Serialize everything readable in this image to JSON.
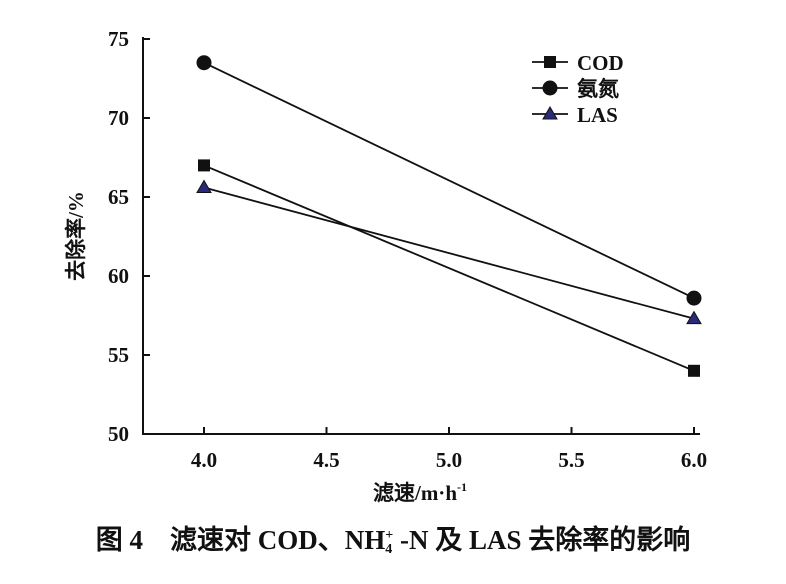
{
  "chart_data": {
    "type": "line",
    "xlabel": "滤速/m·h",
    "xlabel_sup": "-1",
    "ylabel": "去除率/%",
    "x": [
      4.0,
      6.0
    ],
    "xlim": [
      3.72,
      6.02
    ],
    "ylim": [
      50,
      75
    ],
    "xticks": [
      "4.0",
      "4.5",
      "5.0",
      "5.5",
      "6.0"
    ],
    "yticks": [
      "50",
      "55",
      "60",
      "65",
      "70",
      "75"
    ],
    "grid": false,
    "legend_placement": "top-right",
    "series": [
      {
        "name": "COD",
        "marker": "square",
        "color": "#111111",
        "values": [
          67.0,
          54.0
        ]
      },
      {
        "name": "氨氮",
        "marker": "circle",
        "color": "#111111",
        "values": [
          73.5,
          58.6
        ]
      },
      {
        "name": "LAS",
        "marker": "triangle",
        "color": "#2a2a7a",
        "values": [
          65.6,
          57.3
        ]
      }
    ]
  },
  "caption": {
    "fig": "图 4",
    "text1": "滤速对 COD、NH",
    "sub": "4",
    "sup": "+",
    "text2": " -N 及 LAS 去除率的影响"
  }
}
